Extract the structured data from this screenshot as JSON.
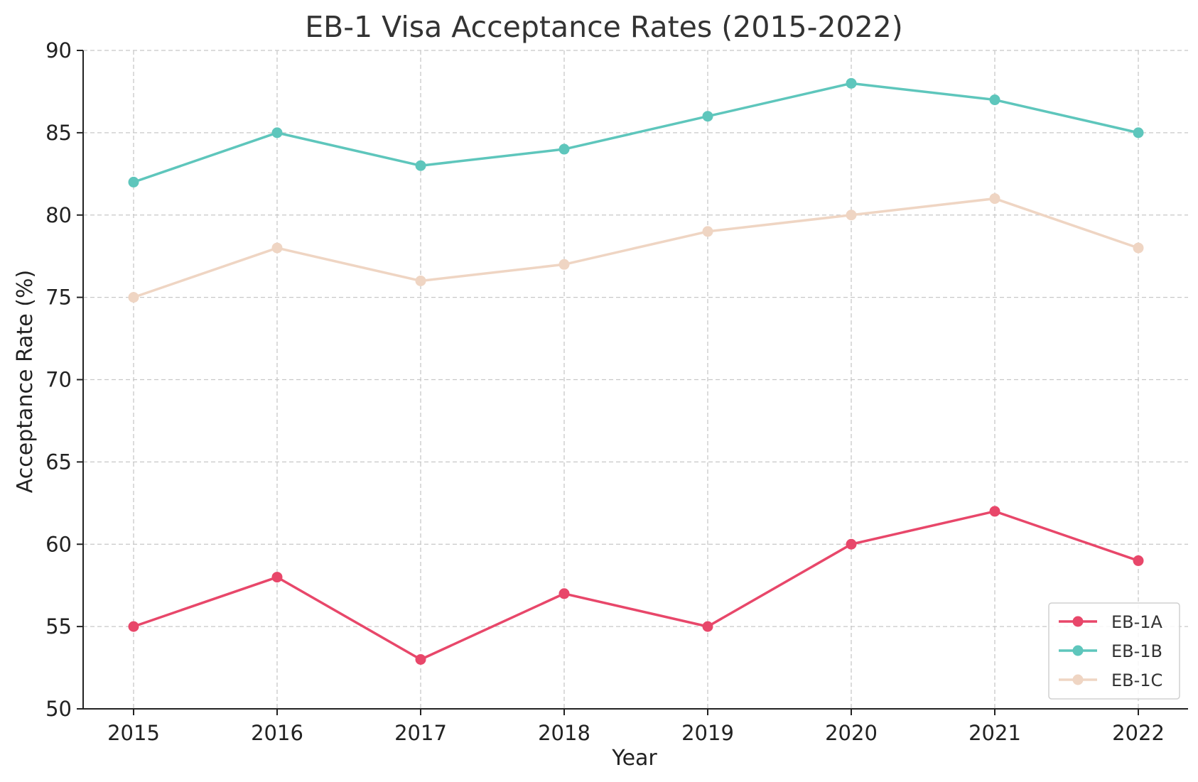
{
  "chart_data": {
    "type": "line",
    "title": "EB-1 Visa Acceptance Rates (2015-2022)",
    "xlabel": "Year",
    "ylabel": "Acceptance Rate (%)",
    "x": [
      "2015",
      "2016",
      "2017",
      "2018",
      "2019",
      "2020",
      "2021",
      "2022"
    ],
    "ylim": [
      50,
      90
    ],
    "yticks": [
      50,
      55,
      60,
      65,
      70,
      75,
      80,
      85,
      90
    ],
    "grid": true,
    "legend_position": "bottom-right",
    "series": [
      {
        "name": "EB-1A",
        "color": "#e8476a",
        "values": [
          55,
          58,
          53,
          57,
          55,
          60,
          62,
          59
        ]
      },
      {
        "name": "EB-1B",
        "color": "#5ec6bc",
        "values": [
          82,
          85,
          83,
          84,
          86,
          88,
          87,
          85
        ]
      },
      {
        "name": "EB-1C",
        "color": "#efd5c3",
        "values": [
          75,
          78,
          76,
          77,
          79,
          80,
          81,
          78
        ]
      }
    ]
  }
}
